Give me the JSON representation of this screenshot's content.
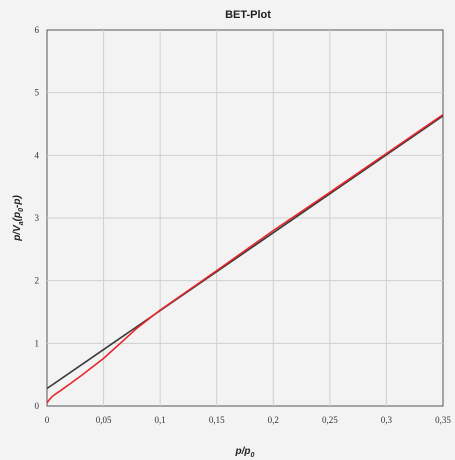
{
  "chart_data": {
    "type": "line",
    "title": "BET-Plot",
    "xlabel": {
      "main": "p/p",
      "sub": "0"
    },
    "ylabel": {
      "p1": "p/V",
      "s1": "a",
      "p2": "(p",
      "s2": "0",
      "p3": "-p)"
    },
    "xlim": [
      0,
      0.35
    ],
    "ylim": [
      0,
      6
    ],
    "x_ticks": [
      0,
      0.05,
      0.1,
      0.15,
      0.2,
      0.25,
      0.3,
      0.35
    ],
    "x_tick_labels": [
      "0",
      "0,05",
      "0,1",
      "0,15",
      "0,2",
      "0,25",
      "0,3",
      "0,35"
    ],
    "y_ticks": [
      0,
      1,
      2,
      3,
      4,
      5,
      6
    ],
    "y_tick_labels": [
      "0",
      "1",
      "2",
      "3",
      "4",
      "5",
      "6"
    ],
    "grid": true,
    "series": [
      {
        "color": "#3a3a3a",
        "x": [
          0,
          0.35
        ],
        "y": [
          0.28,
          4.63
        ]
      },
      {
        "color": "#e8262b",
        "x": [
          0,
          0.002,
          0.005,
          0.01,
          0.02,
          0.03,
          0.05,
          0.08,
          0.1,
          0.15,
          0.2,
          0.25,
          0.3,
          0.35
        ],
        "y": [
          0.05,
          0.1,
          0.16,
          0.22,
          0.35,
          0.48,
          0.76,
          1.25,
          1.53,
          2.16,
          2.8,
          3.41,
          4.03,
          4.65
        ]
      }
    ]
  }
}
